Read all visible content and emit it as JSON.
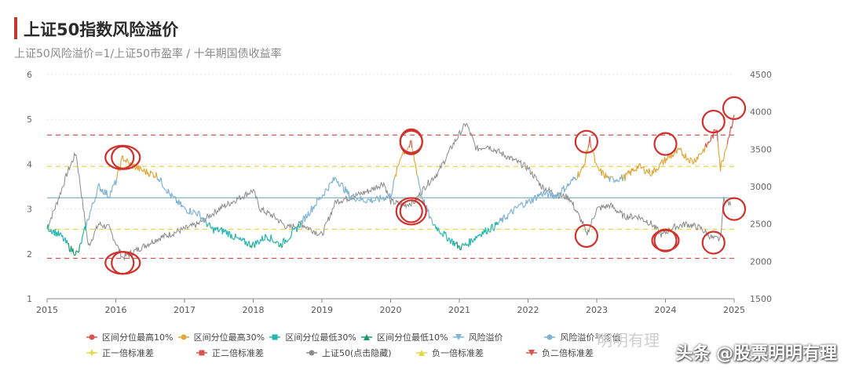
{
  "header": {
    "title": "上证50指数风险溢价",
    "subtitle": "上证50风险溢价=1/上证50市盈率 / 十年期国债收益率"
  },
  "chart_data": {
    "type": "line",
    "x_ticks": [
      "2015",
      "2016",
      "2017",
      "2018",
      "2019",
      "2020",
      "2021",
      "2022",
      "2023",
      "2024",
      "2025"
    ],
    "y_left": {
      "ticks": [
        "1",
        "2",
        "3",
        "4",
        "5",
        "6"
      ],
      "lim": [
        1,
        6
      ]
    },
    "y_right": {
      "ticks": [
        "1500",
        "2000",
        "2500",
        "3000",
        "3500",
        "4000",
        "4500"
      ],
      "lim": [
        1500,
        4500
      ]
    },
    "grid": true,
    "legend_position": "bottom",
    "reference_lines": [
      {
        "name": "正二倍标准差",
        "value": 4.65,
        "style": "dashed",
        "color": "#d9534f"
      },
      {
        "name": "正一倍标准差",
        "value": 3.95,
        "style": "dashed",
        "color": "#e5d84a"
      },
      {
        "name": "风险溢价平均值",
        "value": 3.25,
        "style": "solid",
        "color": "#8fb8c9"
      },
      {
        "name": "负一倍标准差",
        "value": 2.55,
        "style": "dashed",
        "color": "#e5d84a"
      },
      {
        "name": "负二倍标准差",
        "value": 1.9,
        "style": "dashed",
        "color": "#d9534f"
      }
    ],
    "series": [
      {
        "name": "风险溢价",
        "axis": "left",
        "color": "#7fb3d5",
        "x": [
          2015.0,
          2015.2,
          2015.35,
          2015.45,
          2015.6,
          2015.75,
          2015.9,
          2016.0,
          2016.1,
          2016.2,
          2016.4,
          2016.6,
          2016.8,
          2017.0,
          2017.2,
          2017.4,
          2017.6,
          2017.8,
          2018.0,
          2018.2,
          2018.4,
          2018.6,
          2018.8,
          2019.0,
          2019.2,
          2019.4,
          2019.6,
          2019.8,
          2020.0,
          2020.15,
          2020.3,
          2020.45,
          2020.6,
          2020.8,
          2021.0,
          2021.1,
          2021.3,
          2021.5,
          2021.7,
          2021.9,
          2022.0,
          2022.2,
          2022.4,
          2022.6,
          2022.8,
          2022.9,
          2023.0,
          2023.2,
          2023.4,
          2023.6,
          2023.8,
          2024.0,
          2024.2,
          2024.4,
          2024.6,
          2024.75,
          2024.8,
          2024.9,
          2025.0
        ],
        "y": [
          2.6,
          2.4,
          2.1,
          2.0,
          2.8,
          3.5,
          3.3,
          3.6,
          4.15,
          4.0,
          3.85,
          3.75,
          3.3,
          3.0,
          2.9,
          2.55,
          2.5,
          2.3,
          2.2,
          2.4,
          2.2,
          2.5,
          2.9,
          3.3,
          3.7,
          3.3,
          3.2,
          3.2,
          3.3,
          4.2,
          4.45,
          3.3,
          2.7,
          2.4,
          2.15,
          2.2,
          2.45,
          2.6,
          2.85,
          3.1,
          3.15,
          3.35,
          3.3,
          3.55,
          3.9,
          4.55,
          3.9,
          3.65,
          3.7,
          3.95,
          3.8,
          4.1,
          4.3,
          4.05,
          4.4,
          4.8,
          3.9,
          4.5,
          5.1
        ]
      },
      {
        "name": "上证50(点击隐藏)",
        "axis": "right",
        "color": "#8a8a8a",
        "x": [
          2015.0,
          2015.15,
          2015.3,
          2015.42,
          2015.5,
          2015.6,
          2015.75,
          2015.9,
          2016.0,
          2016.1,
          2016.3,
          2016.6,
          2016.9,
          2017.2,
          2017.5,
          2017.8,
          2018.0,
          2018.1,
          2018.3,
          2018.5,
          2018.7,
          2018.9,
          2019.0,
          2019.2,
          2019.4,
          2019.7,
          2019.9,
          2020.0,
          2020.2,
          2020.35,
          2020.5,
          2020.7,
          2020.9,
          2021.1,
          2021.25,
          2021.4,
          2021.6,
          2021.8,
          2022.0,
          2022.2,
          2022.4,
          2022.6,
          2022.8,
          2022.85,
          2023.0,
          2023.2,
          2023.4,
          2023.6,
          2023.8,
          2023.95,
          2024.1,
          2024.3,
          2024.5,
          2024.7,
          2024.8,
          2024.85,
          2024.95
        ],
        "y": [
          2450,
          2800,
          3200,
          3450,
          2900,
          2200,
          2500,
          2450,
          2250,
          2050,
          2150,
          2300,
          2400,
          2500,
          2700,
          2850,
          2950,
          2700,
          2600,
          2450,
          2500,
          2400,
          2350,
          2800,
          2850,
          2950,
          3050,
          2800,
          2750,
          2800,
          3000,
          3200,
          3550,
          3850,
          3500,
          3550,
          3450,
          3350,
          3250,
          3000,
          2900,
          2850,
          2500,
          2350,
          2700,
          2750,
          2600,
          2600,
          2500,
          2350,
          2450,
          2500,
          2450,
          2300,
          2300,
          2850,
          2750
        ]
      }
    ],
    "highlight_markers": [
      {
        "x": 2016.1,
        "y_axis": "left",
        "y": 4.15
      },
      {
        "x": 2016.1,
        "y_axis": "left",
        "y": 1.8
      },
      {
        "x": 2020.3,
        "y_axis": "left",
        "y": 4.5
      },
      {
        "x": 2020.3,
        "y_axis": "left",
        "y": 2.95
      },
      {
        "x": 2022.85,
        "y_axis": "left",
        "y": 4.5
      },
      {
        "x": 2022.85,
        "y_axis": "left",
        "y": 2.4
      },
      {
        "x": 2024.0,
        "y_axis": "left",
        "y": 4.45
      },
      {
        "x": 2024.0,
        "y_axis": "left",
        "y": 2.3
      },
      {
        "x": 2024.7,
        "y_axis": "left",
        "y": 4.95
      },
      {
        "x": 2024.7,
        "y_axis": "left",
        "y": 2.25
      },
      {
        "x": 2025.0,
        "y_axis": "left",
        "y": 5.25
      },
      {
        "x": 2025.0,
        "y_axis": "left",
        "y": 3.0
      }
    ],
    "legend": [
      {
        "label": "区间分位最高10%",
        "color": "#d9534f",
        "symbol": "dot"
      },
      {
        "label": "区间分位最高30%",
        "color": "#e0a83a",
        "symbol": "dot"
      },
      {
        "label": "区间分位最低30%",
        "color": "#26b5b0",
        "symbol": "square"
      },
      {
        "label": "区间分位最低10%",
        "color": "#1c9a6b",
        "symbol": "triangle"
      },
      {
        "label": "风险溢价",
        "color": "#7fb3d5",
        "symbol": "down-triangle"
      },
      {
        "label": "风险溢价平均值",
        "color": "#7fb3d5",
        "symbol": "dot"
      },
      {
        "label": "正一倍标准差",
        "color": "#e5d84a",
        "symbol": "plus"
      },
      {
        "label": "正二倍标准差",
        "color": "#d9534f",
        "symbol": "square"
      },
      {
        "label": "上证50(点击隐藏)",
        "color": "#8a8a8a",
        "symbol": "dot"
      },
      {
        "label": "负一倍标准差",
        "color": "#e5d84a",
        "symbol": "triangle"
      },
      {
        "label": "负二倍标准差",
        "color": "#d9534f",
        "symbol": "down-triangle"
      }
    ]
  },
  "watermark": {
    "text": "头条 @股票明明有理",
    "faint_text": "明明有理"
  }
}
